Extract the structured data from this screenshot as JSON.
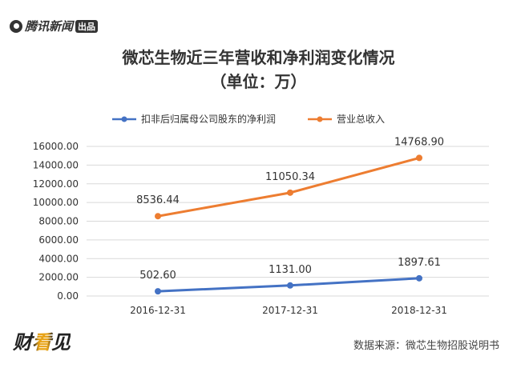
{
  "header": {
    "logo_text": "腾讯新闻",
    "logo_badge": "出品"
  },
  "footer": {
    "brand": "财看见",
    "source": "数据来源：微芯生物招股说明书"
  },
  "chart_data": {
    "type": "line",
    "title": "微芯生物近三年营收和净利润变化情况",
    "subtitle": "（单位：万）",
    "categories": [
      "2016-12-31",
      "2017-12-31",
      "2018-12-31"
    ],
    "series": [
      {
        "name": "扣非后归属母公司股东的净利润",
        "values": [
          502.6,
          1131.0,
          1897.61
        ],
        "labels": [
          "502.60",
          "1131.00",
          "1897.61"
        ],
        "color": "#4472c4"
      },
      {
        "name": "营业总收入",
        "values": [
          8536.44,
          11050.34,
          14768.9
        ],
        "labels": [
          "8536.44",
          "11050.34",
          "14768.90"
        ],
        "color": "#ed7d31"
      }
    ],
    "yticks": [
      "0.00",
      "2000.00",
      "4000.00",
      "6000.00",
      "8000.00",
      "10000.00",
      "12000.00",
      "14000.00",
      "16000.00"
    ],
    "ylim": [
      0,
      16000
    ],
    "grid": true,
    "legend": "top"
  }
}
